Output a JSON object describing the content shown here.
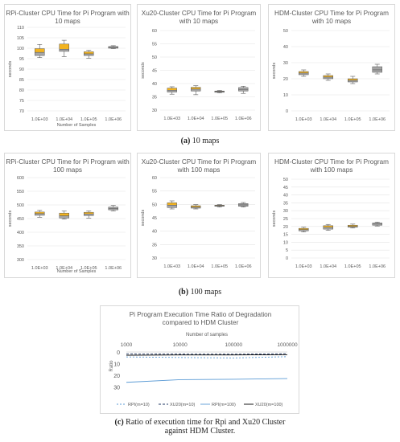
{
  "figure_a_caption": {
    "label": "(a)",
    "text": "10 maps"
  },
  "figure_b_caption": {
    "label": "(b)",
    "text": "100 maps"
  },
  "figure_c_caption": {
    "label": "(c)",
    "line1": "Ratio of execution time for Rpi and Xu20 Cluster",
    "line2": "against HDM Cluster."
  },
  "chart_data": [
    {
      "type": "box",
      "title": "RPi-Cluster CPU Time for Pi Program with 10 maps",
      "xlabel": "Number of Samples",
      "ylabel": "seconds",
      "categories": [
        "1.0E+03",
        "1.0E+04",
        "1.0E+05",
        "1.0E+06"
      ],
      "ylim": [
        70,
        110
      ],
      "yticks": [
        70,
        75,
        80,
        85,
        90,
        95,
        100,
        105,
        110
      ],
      "boxes": [
        {
          "min": 95.5,
          "q1": 96.5,
          "median": 98.0,
          "q3": 99.8,
          "max": 101.8
        },
        {
          "min": 96.0,
          "q1": 98.5,
          "median": 99.5,
          "q3": 102.0,
          "max": 103.8
        },
        {
          "min": 95.2,
          "q1": 96.5,
          "median": 97.3,
          "q3": 98.3,
          "max": 99.0
        },
        {
          "min": 99.8,
          "q1": 100.0,
          "median": 100.4,
          "q3": 100.8,
          "max": 101.2
        }
      ],
      "box_color": "#f2b31f",
      "median_box_color": "#a5a5a5"
    },
    {
      "type": "box",
      "title": "Xu20-Cluster CPU Time for Pi Program with 10 maps",
      "xlabel": "",
      "ylabel": "seconds",
      "categories": [
        "1.0E+03",
        "1.0E+04",
        "1.0E+05",
        "1.0E+06"
      ],
      "ylim": [
        30,
        60
      ],
      "yticks": [
        30,
        35,
        40,
        45,
        50,
        55,
        60
      ],
      "boxes": [
        {
          "min": 36.0,
          "q1": 36.8,
          "median": 37.5,
          "q3": 38.3,
          "max": 38.8
        },
        {
          "min": 35.8,
          "q1": 37.2,
          "median": 37.9,
          "q3": 38.6,
          "max": 39.2
        },
        {
          "min": 36.5,
          "q1": 36.7,
          "median": 37.0,
          "q3": 37.2,
          "max": 37.4
        },
        {
          "min": 36.3,
          "q1": 37.2,
          "median": 37.8,
          "q3": 38.5,
          "max": 39.0
        }
      ],
      "box_color": "#f2b31f",
      "median_box_color": "#a5a5a5"
    },
    {
      "type": "box",
      "title": "HDM-Cluster CPU Time for Pi Program with 10 maps",
      "xlabel": "",
      "ylabel": "seconds",
      "categories": [
        "1.0E+03",
        "1.0E+04",
        "1.0E+05",
        "1.0E+06"
      ],
      "ylim": [
        0,
        50
      ],
      "yticks": [
        0,
        10,
        20,
        30,
        40,
        50
      ],
      "boxes": [
        {
          "min": 21.5,
          "q1": 22.5,
          "median": 23.5,
          "q3": 24.5,
          "max": 25.5
        },
        {
          "min": 19.0,
          "q1": 20.0,
          "median": 21.0,
          "q3": 22.0,
          "max": 23.0
        },
        {
          "min": 17.0,
          "q1": 18.0,
          "median": 19.0,
          "q3": 20.0,
          "max": 21.5
        },
        {
          "min": 23.0,
          "q1": 24.0,
          "median": 25.5,
          "q3": 27.5,
          "max": 29.0
        }
      ],
      "box_color": "#f2b31f",
      "median_box_color": "#a5a5a5"
    },
    {
      "type": "box",
      "title": "RPi-Cluster CPU Time for Pi Program with 100 maps",
      "xlabel": "Number of Samples",
      "ylabel": "seconds",
      "categories": [
        "1.0E+03",
        "1.0E+04",
        "1.0E+05",
        "1.0E+06"
      ],
      "ylim": [
        300,
        600
      ],
      "yticks": [
        300,
        350,
        400,
        450,
        500,
        550,
        600
      ],
      "boxes": [
        {
          "min": 455,
          "q1": 462,
          "median": 468,
          "q3": 474,
          "max": 480
        },
        {
          "min": 448,
          "q1": 452,
          "median": 460,
          "q3": 470,
          "max": 478
        },
        {
          "min": 452,
          "q1": 461,
          "median": 467,
          "q3": 473,
          "max": 478
        },
        {
          "min": 478,
          "q1": 482,
          "median": 487,
          "q3": 492,
          "max": 498
        }
      ],
      "box_color": "#f2b31f",
      "median_box_color": "#a5a5a5"
    },
    {
      "type": "box",
      "title": "Xu20-Cluster CPU Time for Pi Program with 100 maps",
      "xlabel": "",
      "ylabel": "seconds",
      "categories": [
        "1.0E+03",
        "1.0E+04",
        "1.0E+05",
        "1.0E+06"
      ],
      "ylim": [
        30,
        60
      ],
      "yticks": [
        30,
        35,
        40,
        45,
        50,
        55,
        60
      ],
      "boxes": [
        {
          "min": 48.3,
          "q1": 48.8,
          "median": 49.7,
          "q3": 50.6,
          "max": 51.3
        },
        {
          "min": 48.3,
          "q1": 48.6,
          "median": 49.0,
          "q3": 49.5,
          "max": 49.9
        },
        {
          "min": 49.0,
          "q1": 49.3,
          "median": 49.5,
          "q3": 49.7,
          "max": 49.9
        },
        {
          "min": 49.0,
          "q1": 49.3,
          "median": 49.8,
          "q3": 50.3,
          "max": 50.7
        }
      ],
      "box_color": "#f2b31f",
      "median_box_color": "#a5a5a5"
    },
    {
      "type": "box",
      "title": "HDM-Cluster CPU Time for Pi Program with 100 maps",
      "xlabel": "",
      "ylabel": "seconds",
      "categories": [
        "1.0E+03",
        "1.0E+04",
        "1.0E+05",
        "1.0E+06"
      ],
      "ylim": [
        0,
        50
      ],
      "yticks": [
        0,
        5,
        10,
        15,
        20,
        25,
        30,
        35,
        40,
        45,
        50
      ],
      "boxes": [
        {
          "min": 16.5,
          "q1": 17.2,
          "median": 18.0,
          "q3": 18.8,
          "max": 19.5
        },
        {
          "min": 17.5,
          "q1": 18.3,
          "median": 19.5,
          "q3": 20.5,
          "max": 21.3
        },
        {
          "min": 19.0,
          "q1": 19.5,
          "median": 20.0,
          "q3": 20.8,
          "max": 21.5
        },
        {
          "min": 20.3,
          "q1": 20.8,
          "median": 21.5,
          "q3": 22.2,
          "max": 22.8
        }
      ],
      "box_color": "#f2b31f",
      "median_box_color": "#a5a5a5"
    },
    {
      "type": "line",
      "title": "Pi Program Execution Time Ratio of Degradation compared to HDM Cluster",
      "xlabel": "Number of samples",
      "ylabel": "Ratio",
      "x": [
        1000,
        10000,
        100000,
        1000000
      ],
      "xticks": [
        "1000",
        "10000",
        "100000",
        "1000000"
      ],
      "x_scale": "log",
      "ylim": [
        0,
        35
      ],
      "y_inverted": true,
      "yticks": [
        0,
        10,
        20,
        30
      ],
      "legend_position": "bottom",
      "series": [
        {
          "name": "RPI(m=10)",
          "values": [
            4.2,
            4.7,
            5.1,
            4.0
          ],
          "color": "#5b9bd5",
          "dash": "2,2"
        },
        {
          "name": "XU20(m=10)",
          "values": [
            1.6,
            1.8,
            1.9,
            1.5
          ],
          "color": "#203864",
          "dash": "3,2"
        },
        {
          "name": "RPI(m=100)",
          "values": [
            25.9,
            23.6,
            23.3,
            22.7
          ],
          "color": "#5b9bd5",
          "dash": ""
        },
        {
          "name": "XU20(m=100)",
          "values": [
            2.8,
            2.5,
            2.5,
            2.3
          ],
          "color": "#000000",
          "dash": ""
        }
      ]
    }
  ]
}
